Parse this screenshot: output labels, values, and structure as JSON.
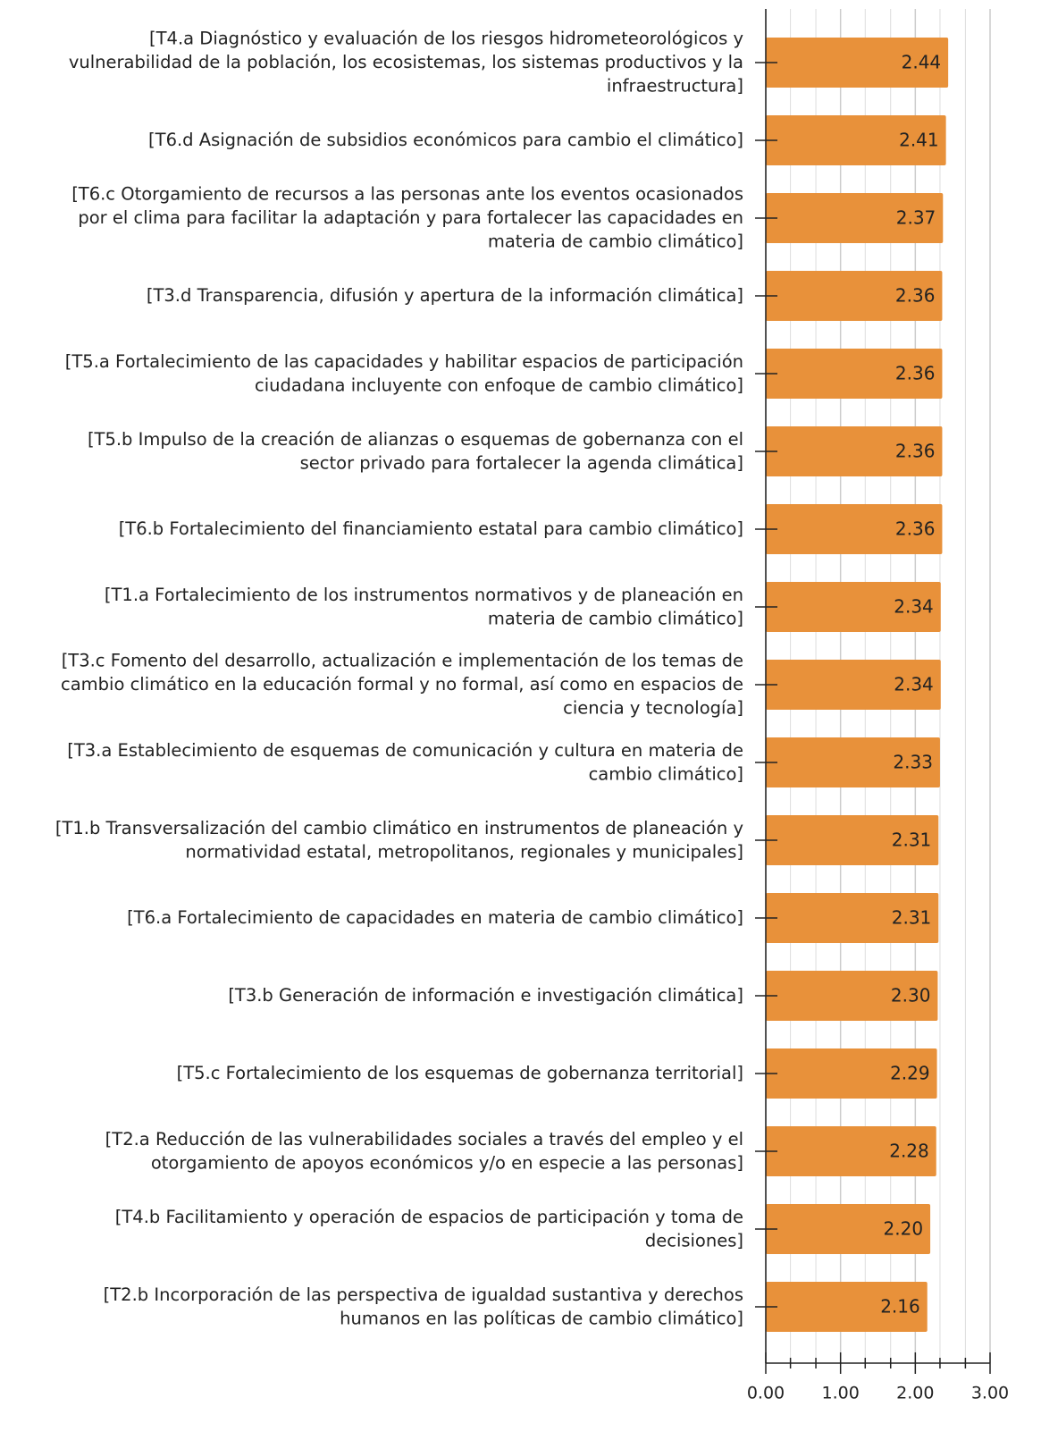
{
  "chart_data": {
    "type": "barh",
    "categories": [
      "[T4.a Diagnóstico y evaluación de los riesgos hidrometeorológicos y\nvulnerabilidad de la población, los ecosistemas, los sistemas productivos y la\ninfraestructura]",
      "[T6.d Asignación de subsidios económicos para cambio el climático]",
      "[T6.c Otorgamiento de recursos a las personas ante los eventos ocasionados\npor el clima para facilitar la adaptación y para fortalecer las capacidades en\nmateria de cambio climático]",
      "[T3.d Transparencia, difusión y apertura de la información climática]",
      "[T5.a Fortalecimiento de las capacidades y habilitar espacios de participación\nciudadana incluyente con enfoque de cambio climático]",
      "[T5.b Impulso de la creación de alianzas o esquemas de gobernanza con el\nsector privado para fortalecer la agenda climática]",
      "[T6.b Fortalecimiento del financiamiento estatal para cambio climático]",
      "[T1.a Fortalecimiento de los instrumentos normativos y de planeación en\nmateria de cambio climático]",
      "[T3.c Fomento del desarrollo, actualización e implementación de los temas de\ncambio climático en la educación formal y no formal, así como en espacios de\nciencia y tecnología]",
      "[T3.a Establecimiento de esquemas de comunicación y cultura en materia de\ncambio climático]",
      "[T1.b Transversalización del cambio climático en instrumentos de planeación y\nnormatividad estatal, metropolitanos, regionales y municipales]",
      "[T6.a Fortalecimiento de capacidades en materia de cambio climático]",
      "[T3.b Generación de información e investigación climática]",
      "[T5.c Fortalecimiento de los esquemas de gobernanza territorial]",
      "[T2.a Reducción de las vulnerabilidades sociales a través del empleo y el\notorgamiento de apoyos económicos y/o en especie a las personas]",
      "[T4.b Facilitamiento y operación de espacios de participación y toma de\ndecisiones]",
      "[T2.b Incorporación de las perspectiva de igualdad sustantiva y derechos\nhumanos en las políticas de cambio climático]"
    ],
    "values": [
      2.44,
      2.41,
      2.37,
      2.36,
      2.36,
      2.36,
      2.36,
      2.34,
      2.34,
      2.33,
      2.31,
      2.31,
      2.3,
      2.29,
      2.28,
      2.2,
      2.16
    ],
    "value_labels": [
      "2.44",
      "2.41",
      "2.37",
      "2.36",
      "2.36",
      "2.36",
      "2.36",
      "2.34",
      "2.34",
      "2.33",
      "2.31",
      "2.31",
      "2.30",
      "2.29",
      "2.28",
      "2.20",
      "2.16"
    ],
    "color": "#e8913a",
    "xlim": [
      0,
      3
    ],
    "xticks": [
      {
        "value": 0,
        "label": "0.00"
      },
      {
        "value": 1,
        "label": "1.00"
      },
      {
        "value": 2,
        "label": "2.00"
      },
      {
        "value": 3,
        "label": "3.00"
      }
    ],
    "minor_xticks": [
      0.33,
      0.67,
      1.33,
      1.67,
      2.33,
      2.67
    ],
    "grid": true
  }
}
